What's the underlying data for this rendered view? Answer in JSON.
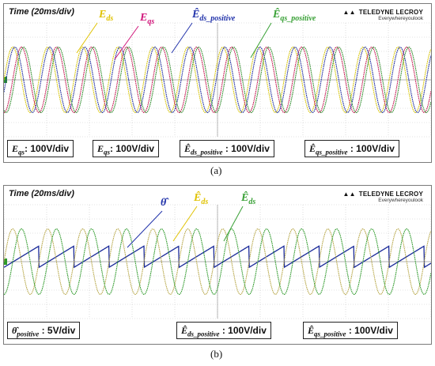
{
  "panels": {
    "a": {
      "time_label": "Time (20ms/div)",
      "logo": {
        "brand": "TELEDYNE LECROY",
        "tagline": "Everywhereyoulook"
      },
      "annotations": [
        {
          "text": "E_ds",
          "color": "#e0c200"
        },
        {
          "text": "E_qs",
          "color": "#d0157a"
        },
        {
          "text": "Ê_ds_positive",
          "color": "#2233aa"
        },
        {
          "text": "Ê_qs_positive",
          "color": "#38a035"
        }
      ],
      "legend": [
        "E_qs: 100V/div",
        "E_qs: 100V/div",
        "Ê_ds_positive : 100V/div",
        "Ê_qs_positive : 100V/div"
      ],
      "caption": "(a)"
    },
    "b": {
      "time_label": "Time (20ms/div)",
      "logo": {
        "brand": "TELEDYNE LECROY",
        "tagline": "Everywhereyoulook"
      },
      "annotations": [
        {
          "text": "θ̂",
          "color": "#2233aa"
        },
        {
          "text": "Ê_ds",
          "color": "#e0c200"
        },
        {
          "text": "Ê_ds",
          "color": "#38a035"
        }
      ],
      "legend": [
        "θ̂_positive : 5V/div",
        "Ê_ds_positive : 100V/div",
        "Ê_qs_positive : 100V/div"
      ],
      "caption": "(b)"
    }
  },
  "chart_data": [
    {
      "type": "line",
      "title": "",
      "xlabel": "Time (20ms/div)",
      "x_range_div": [
        0,
        10
      ],
      "y_range_div": [
        -4,
        4
      ],
      "grid": true,
      "series": [
        {
          "name": "E_ds",
          "color": "#d4c200",
          "amplitude_div": 2.3,
          "period_div": 0.82,
          "phase_div": 0.0
        },
        {
          "name": "E_qs",
          "color": "#c0104a",
          "amplitude_div": 2.3,
          "period_div": 0.82,
          "phase_div": 0.205
        },
        {
          "name": "Ê_ds_positive",
          "color": "#1a2a9a",
          "amplitude_div": 2.3,
          "period_div": 0.82,
          "phase_div": 0.05
        },
        {
          "name": "Ê_qs_positive",
          "color": "#2e8a2a",
          "amplitude_div": 2.3,
          "period_div": 0.82,
          "phase_div": 0.255
        }
      ]
    },
    {
      "type": "line",
      "title": "",
      "xlabel": "Time (20ms/div)",
      "x_range_div": [
        0,
        10
      ],
      "y_range_div": [
        -4,
        4
      ],
      "grid": true,
      "series": [
        {
          "name": "θ̂",
          "color": "#1a2a9a",
          "kind": "sawtooth",
          "low_div": -0.4,
          "high_div": 1.1,
          "period_div": 0.82,
          "phase_div": 0.0
        },
        {
          "name": "Ê_ds",
          "color": "#b8a84a",
          "amplitude_div": 2.3,
          "period_div": 0.82,
          "phase_div": 0.0
        },
        {
          "name": "Ê_ds",
          "color": "#2e9a2a",
          "amplitude_div": 2.3,
          "period_div": 0.82,
          "phase_div": 0.205
        }
      ]
    }
  ]
}
